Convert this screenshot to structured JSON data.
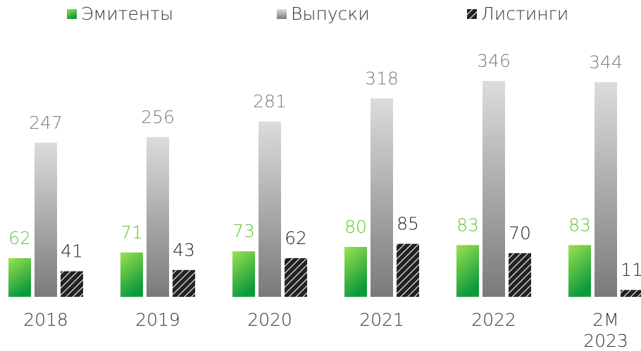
{
  "chart_data": {
    "type": "bar",
    "categories": [
      "2018",
      "2019",
      "2020",
      "2021",
      "2022",
      "2M\n2023"
    ],
    "series": [
      {
        "name": "Эмитенты",
        "color": "#0e9a3c",
        "label_color": "#5cc72e",
        "values": [
          62,
          71,
          73,
          80,
          83,
          83
        ]
      },
      {
        "name": "Выпуски",
        "color": "#7a7a7a",
        "label_color": "#7a7a7a",
        "values": [
          247,
          256,
          281,
          318,
          346,
          344
        ]
      },
      {
        "name": "Листинги",
        "color": "#222222",
        "label_color": "#222222",
        "pattern": "hatch",
        "values": [
          41,
          43,
          62,
          85,
          70,
          11
        ]
      }
    ],
    "legend": "top"
  }
}
